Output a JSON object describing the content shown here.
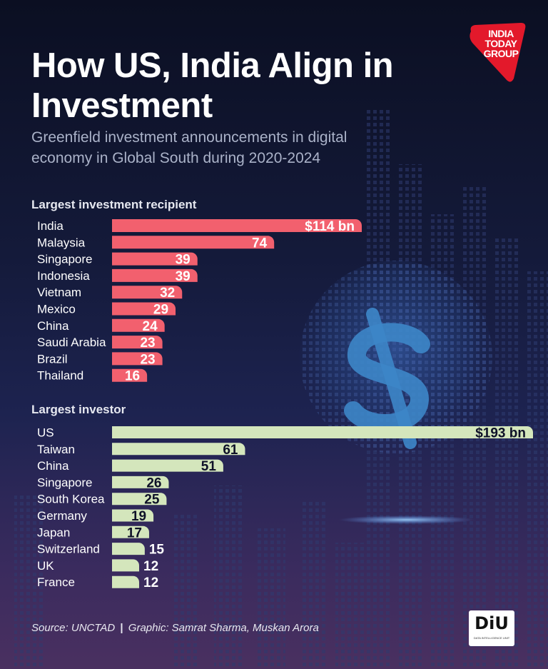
{
  "header": {
    "title": "How US, India Align in Investment",
    "subtitle": "Greenfield investment announcements in digital economy in Global South during 2020-2024"
  },
  "logo": {
    "text": "INDIA TODAY GROUP"
  },
  "chart_data": [
    {
      "type": "bar",
      "orientation": "horizontal",
      "title": "Largest investment recipient",
      "unit": "$ bn",
      "color": "#f2606e",
      "categories": [
        "India",
        "Malaysia",
        "Singapore",
        "Indonesia",
        "Vietnam",
        "Mexico",
        "China",
        "Saudi Arabia",
        "Brazil",
        "Thailand"
      ],
      "values": [
        114,
        74,
        39,
        39,
        32,
        29,
        24,
        23,
        23,
        16
      ],
      "value_labels": [
        "$114 bn",
        "74",
        "39",
        "39",
        "32",
        "29",
        "24",
        "23",
        "23",
        "16"
      ]
    },
    {
      "type": "bar",
      "orientation": "horizontal",
      "title": "Largest investor",
      "unit": "$ bn",
      "color": "#d4e6bc",
      "categories": [
        "US",
        "Taiwan",
        "China",
        "Singapore",
        "South Korea",
        "Germany",
        "Japan",
        "Switzerland",
        "UK",
        "France"
      ],
      "values": [
        193,
        61,
        51,
        26,
        25,
        19,
        17,
        15,
        12,
        12
      ],
      "value_labels": [
        "$193 bn",
        "61",
        "51",
        "26",
        "25",
        "19",
        "17",
        "15",
        "12",
        "12"
      ]
    }
  ],
  "footer": {
    "source": "Source: UNCTAD",
    "separator": "|",
    "credits": "Graphic: Samrat Sharma, Muskan Arora"
  },
  "badge": {
    "main": "DiU",
    "sub": "DATA INTELLIGENCE UNIT"
  }
}
